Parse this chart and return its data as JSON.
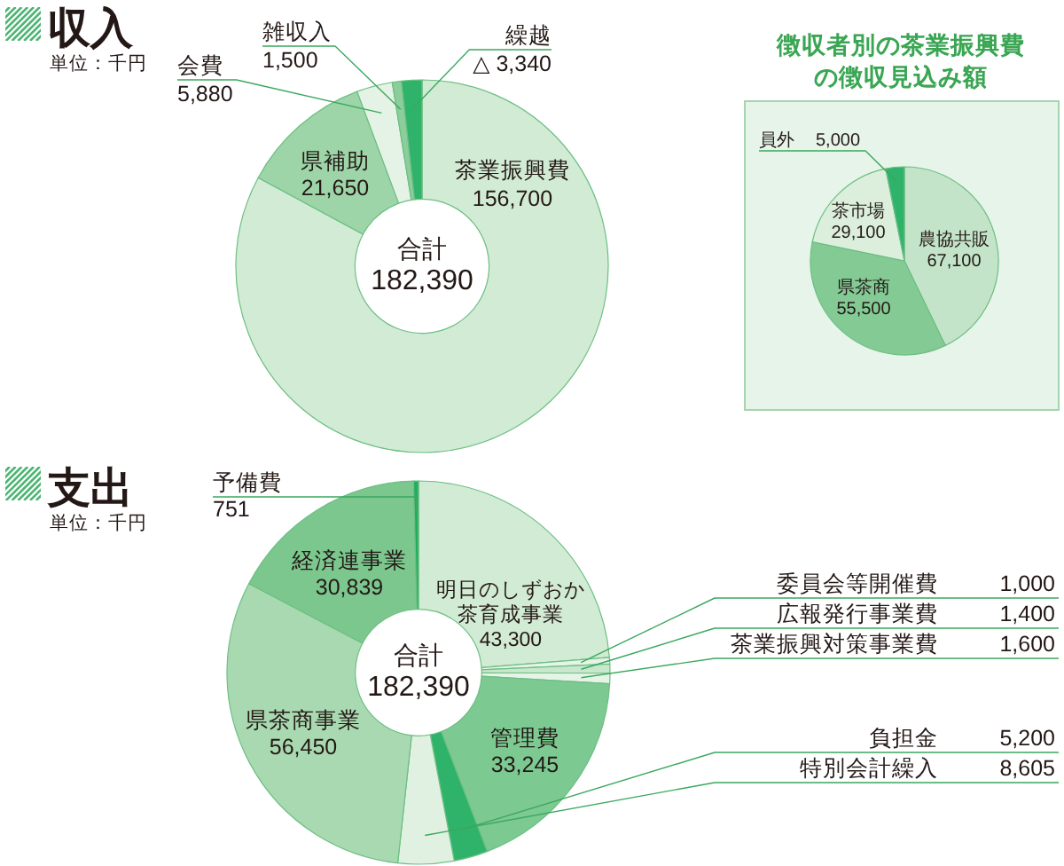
{
  "chart_data": [
    {
      "type": "donut",
      "title": "収入",
      "subtitle": "単位：千円",
      "categories": [
        "茶業振興費",
        "県補助",
        "会費",
        "雑収入",
        "繰越"
      ],
      "values": [
        156700,
        21650,
        5880,
        1500,
        3340
      ],
      "colors": [
        "#d2ebd4",
        "#9dd5a8",
        "#e4f3e5",
        "#8bcd9b",
        "#2fb36b"
      ],
      "value_labels": [
        "156,700",
        "21,650",
        "5,880",
        "1,500",
        "△ 3,340"
      ],
      "annotations": [
        "合計 182,390"
      ]
    },
    {
      "type": "pie",
      "title": "徴収者別の茶業振興費の徴収見込み額",
      "categories": [
        "農協共販",
        "県茶商",
        "茶市場",
        "員外"
      ],
      "values": [
        67100,
        55500,
        29100,
        5000
      ],
      "colors": [
        "#c3e4c8",
        "#84ca95",
        "#dcefdd",
        "#2fb36b"
      ],
      "value_labels": [
        "67,100",
        "55,500",
        "29,100",
        "5,000"
      ]
    },
    {
      "type": "donut",
      "title": "支出",
      "subtitle": "単位：千円",
      "categories": [
        "明日のしずおか茶育成事業",
        "委員会等開催費",
        "広報発行事業費",
        "茶業振興対策事業費",
        "管理費",
        "負担金",
        "特別会計繰入",
        "県茶商事業",
        "経済連事業",
        "予備費"
      ],
      "values": [
        43300,
        1000,
        1400,
        1600,
        33245,
        5200,
        8605,
        56450,
        30839,
        751
      ],
      "colors": [
        "#d2ebd4",
        "#e5f4e6",
        "#c9e7cd",
        "#e5f4e6",
        "#7cc992",
        "#2fb36b",
        "#e0f1e1",
        "#a9d9b1",
        "#7bc78e",
        "#22ad62"
      ],
      "value_labels": [
        "43,300",
        "1,000",
        "1,400",
        "1,600",
        "33,245",
        "5,200",
        "8,605",
        "56,450",
        "30,839",
        "751"
      ],
      "annotations": [
        "合計 182,390"
      ]
    }
  ]
}
